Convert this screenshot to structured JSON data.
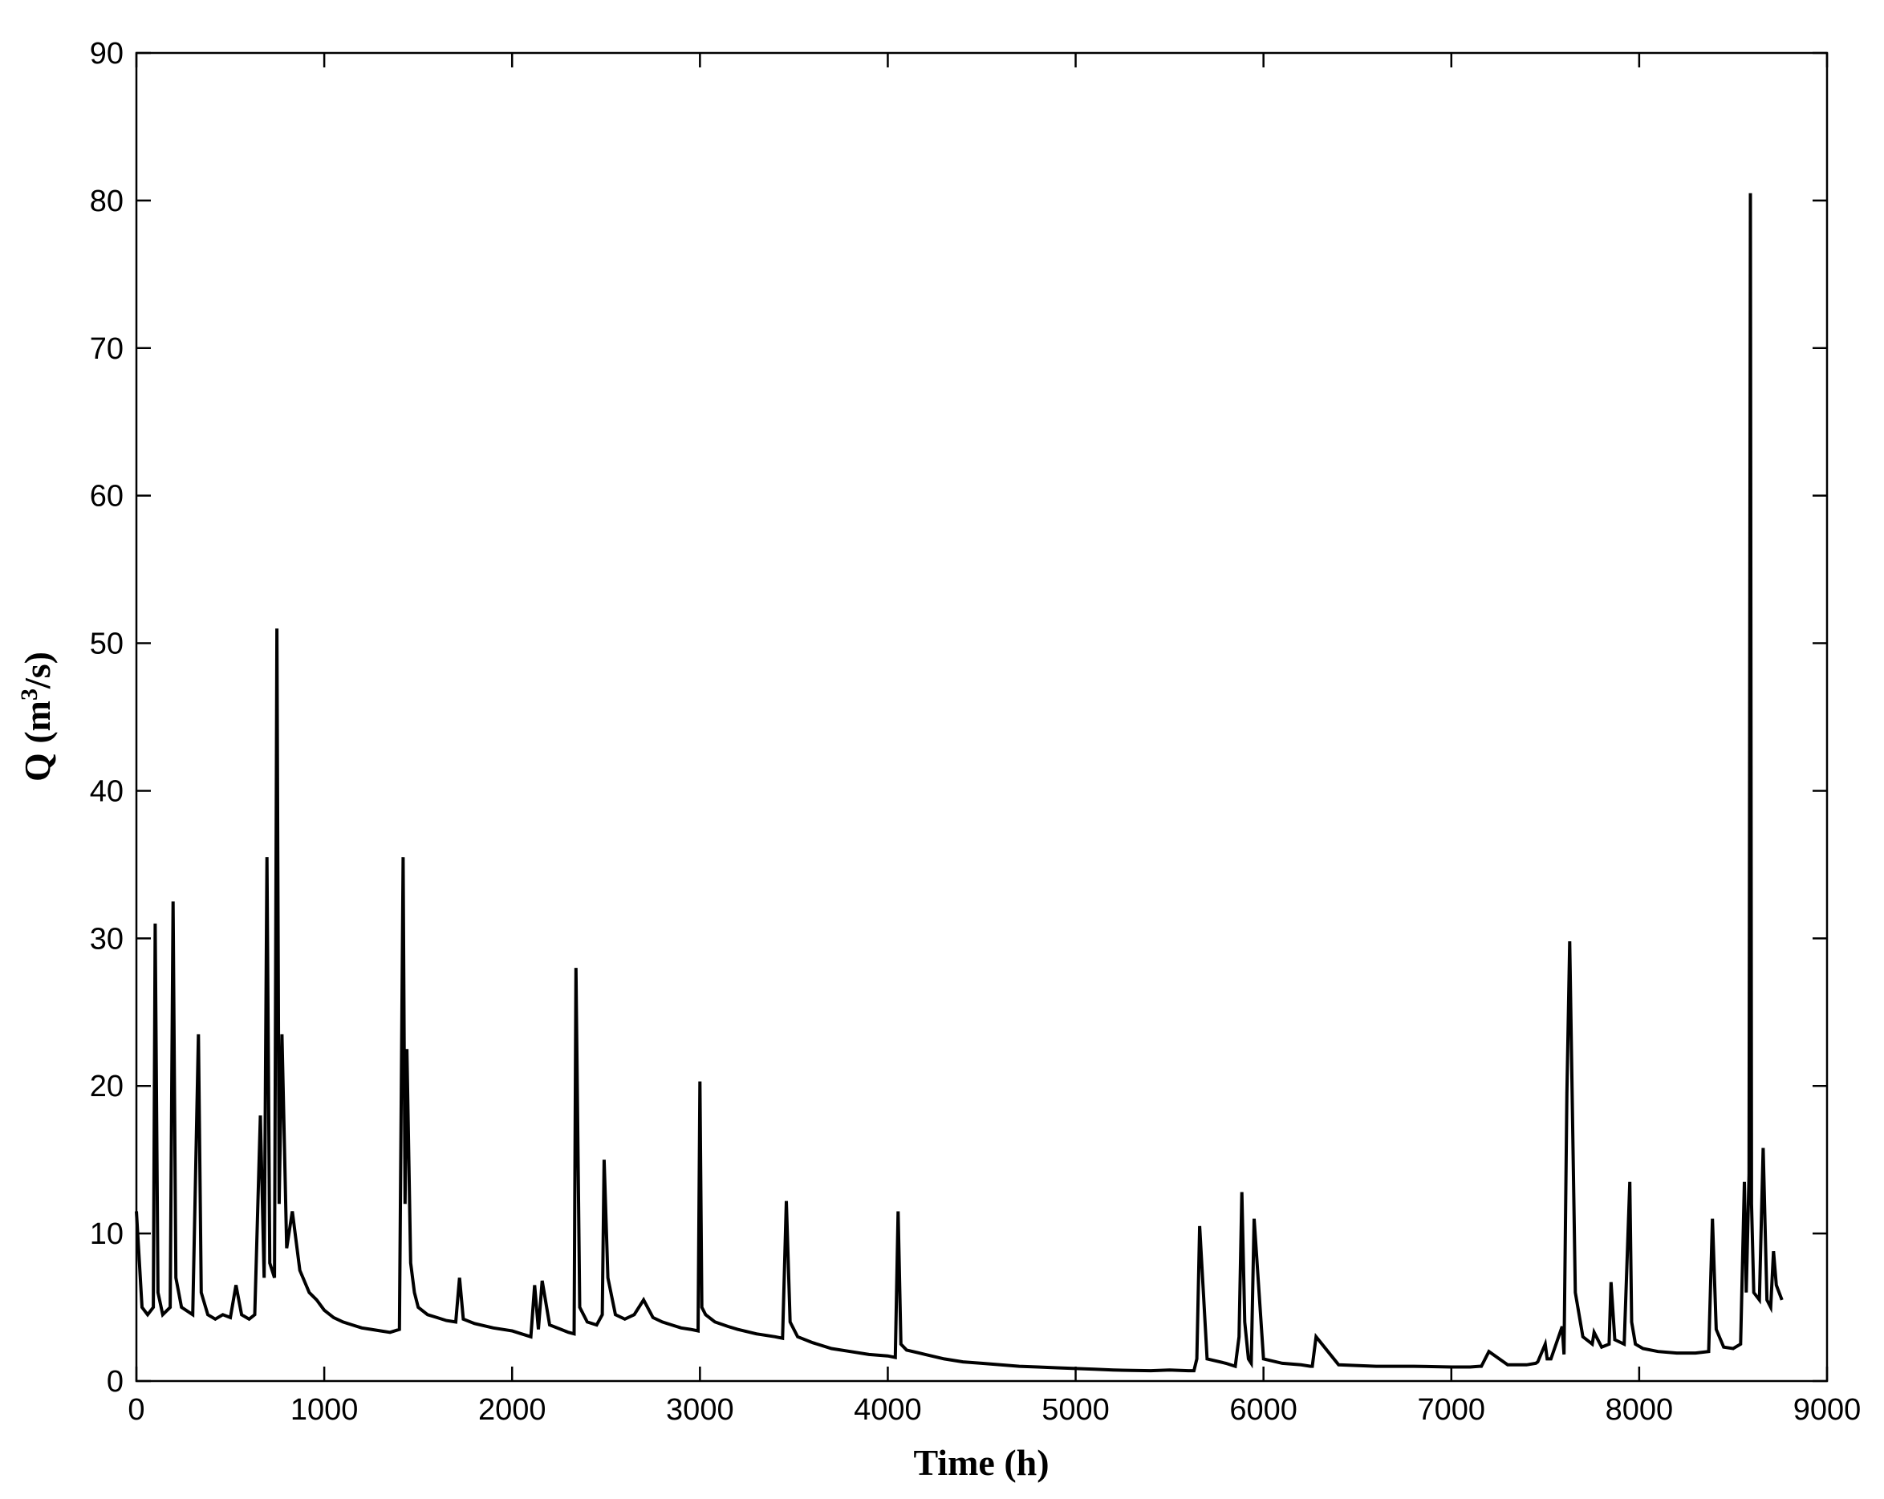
{
  "chart_data": {
    "type": "line",
    "title": "",
    "xlabel": "Time (h)",
    "ylabel_main": "Q (m",
    "ylabel_sup": "3",
    "ylabel_end": "/s)",
    "xlim": [
      0,
      9000
    ],
    "ylim": [
      0,
      90
    ],
    "xticks": [
      0,
      1000,
      2000,
      3000,
      4000,
      5000,
      6000,
      7000,
      8000,
      9000
    ],
    "yticks": [
      0,
      10,
      20,
      30,
      40,
      50,
      60,
      70,
      80,
      90
    ],
    "grid": false,
    "line_color": "#000000",
    "series": [
      {
        "x": [
          0,
          30,
          60,
          90,
          100,
          115,
          140,
          180,
          195,
          210,
          240,
          300,
          330,
          345,
          380,
          420,
          460,
          500,
          530,
          560,
          600,
          630,
          660,
          680,
          695,
          710,
          735,
          748,
          760,
          775,
          800,
          830,
          870,
          920,
          960,
          1000,
          1050,
          1100,
          1150,
          1200,
          1250,
          1300,
          1350,
          1400,
          1420,
          1430,
          1440,
          1460,
          1480,
          1500,
          1550,
          1600,
          1650,
          1700,
          1720,
          1740,
          1800,
          1900,
          2000,
          2050,
          2100,
          2120,
          2140,
          2160,
          2200,
          2260,
          2300,
          2330,
          2340,
          2360,
          2400,
          2450,
          2480,
          2490,
          2510,
          2550,
          2600,
          2650,
          2700,
          2750,
          2800,
          2850,
          2900,
          2950,
          2990,
          3000,
          3010,
          3030,
          3080,
          3150,
          3200,
          3300,
          3400,
          3440,
          3460,
          3480,
          3520,
          3600,
          3700,
          3800,
          3900,
          4000,
          4040,
          4055,
          4070,
          4100,
          4200,
          4300,
          4400,
          4500,
          4600,
          4700,
          4800,
          4900,
          5000,
          5100,
          5200,
          5300,
          5400,
          5500,
          5600,
          5630,
          5645,
          5660,
          5700,
          5800,
          5850,
          5870,
          5885,
          5900,
          5920,
          5935,
          5950,
          6000,
          6100,
          6200,
          6250,
          6260,
          6280,
          6400,
          6600,
          6800,
          7000,
          7100,
          7150,
          7160,
          7200,
          7300,
          7400,
          7450,
          7460,
          7500,
          7510,
          7530,
          7590,
          7600,
          7615,
          7630,
          7660,
          7700,
          7750,
          7760,
          7800,
          7840,
          7850,
          7870,
          7920,
          7950,
          7960,
          7980,
          8020,
          8100,
          8200,
          8300,
          8370,
          8390,
          8410,
          8450,
          8500,
          8540,
          8560,
          8570,
          8585,
          8592,
          8598,
          8610,
          8640,
          8660,
          8680,
          8700,
          8715,
          8730,
          8760
        ],
        "y": [
          11.5,
          5.0,
          4.5,
          5.0,
          31.0,
          6.0,
          4.5,
          5.0,
          32.5,
          7.0,
          5.0,
          4.5,
          23.5,
          6.0,
          4.5,
          4.2,
          4.5,
          4.3,
          6.5,
          4.5,
          4.2,
          4.5,
          18.0,
          7.0,
          35.5,
          8.0,
          7.0,
          51.0,
          12.0,
          23.5,
          9.0,
          11.5,
          7.5,
          6.0,
          5.5,
          4.8,
          4.3,
          4.0,
          3.8,
          3.6,
          3.5,
          3.4,
          3.3,
          3.5,
          35.5,
          12.0,
          22.5,
          8.0,
          6.0,
          5.0,
          4.5,
          4.3,
          4.1,
          4.0,
          7.0,
          4.2,
          3.9,
          3.6,
          3.4,
          3.2,
          3.0,
          6.5,
          3.5,
          6.8,
          3.8,
          3.5,
          3.3,
          3.2,
          28.0,
          5.0,
          4.0,
          3.8,
          4.5,
          15.0,
          7.0,
          4.5,
          4.2,
          4.5,
          5.5,
          4.3,
          4.0,
          3.8,
          3.6,
          3.5,
          3.4,
          20.3,
          5.0,
          4.5,
          4.0,
          3.7,
          3.5,
          3.2,
          3.0,
          2.9,
          12.2,
          4.0,
          3.0,
          2.6,
          2.2,
          2.0,
          1.8,
          1.7,
          1.6,
          11.5,
          2.5,
          2.1,
          1.8,
          1.5,
          1.3,
          1.2,
          1.1,
          1.0,
          0.95,
          0.9,
          0.85,
          0.8,
          0.75,
          0.72,
          0.7,
          0.75,
          0.7,
          0.7,
          1.5,
          10.5,
          1.5,
          1.2,
          1.0,
          3.0,
          12.8,
          4.0,
          1.5,
          1.2,
          11.0,
          1.5,
          1.2,
          1.1,
          1.0,
          1.0,
          3.0,
          1.1,
          1.0,
          1.0,
          0.95,
          0.95,
          1.0,
          1.0,
          2.0,
          1.1,
          1.1,
          1.2,
          1.3,
          2.5,
          1.5,
          1.5,
          3.7,
          1.8,
          19.5,
          29.8,
          6.0,
          3.0,
          2.5,
          3.3,
          2.3,
          2.5,
          6.7,
          2.8,
          2.5,
          13.5,
          4.0,
          2.5,
          2.2,
          2.0,
          1.9,
          1.9,
          2.0,
          11.0,
          3.5,
          2.3,
          2.2,
          2.5,
          13.5,
          6.0,
          14.0,
          80.5,
          12.0,
          6.0,
          5.5,
          15.8,
          5.5,
          5.0,
          8.8,
          6.5,
          5.5
        ]
      }
    ]
  }
}
